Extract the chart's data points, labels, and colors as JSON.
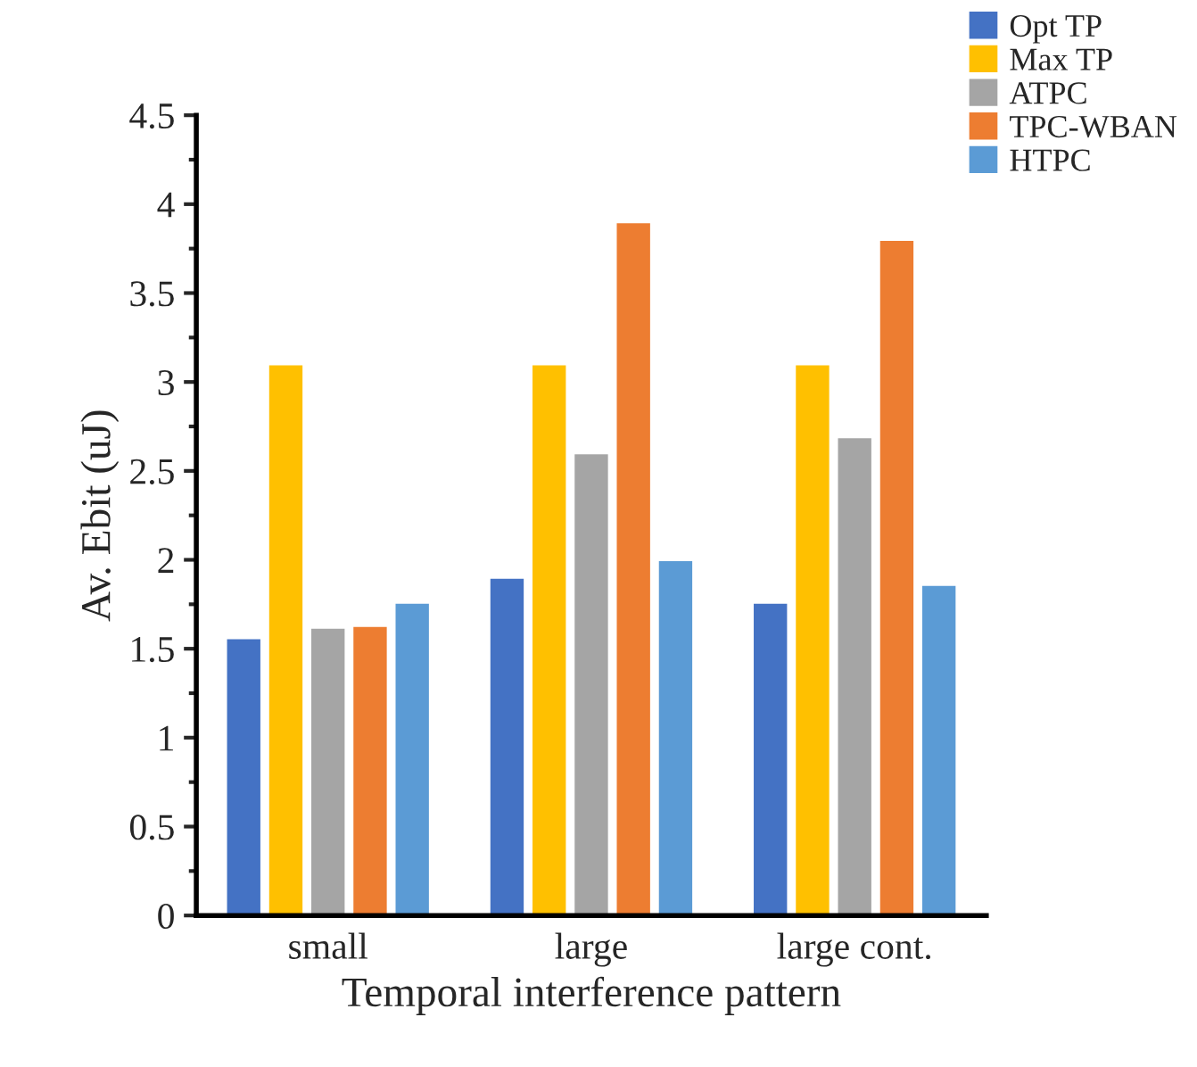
{
  "chart_data": {
    "type": "bar",
    "xlabel": "Temporal interference pattern",
    "ylabel": "Av. Ebit (uJ)",
    "categories": [
      "small",
      "large",
      "large cont."
    ],
    "series": [
      {
        "name": "Opt TP",
        "color": "#4472c4",
        "values": [
          1.56,
          1.9,
          1.76
        ]
      },
      {
        "name": "Max TP",
        "color": "#ffc000",
        "values": [
          3.1,
          3.1,
          3.1
        ]
      },
      {
        "name": "ATPC",
        "color": "#a5a5a5",
        "values": [
          1.62,
          2.6,
          2.69
        ]
      },
      {
        "name": "TPC-WBAN",
        "color": "#ed7d31",
        "values": [
          1.63,
          3.9,
          3.8
        ]
      },
      {
        "name": "HTPC",
        "color": "#5b9bd5",
        "values": [
          1.76,
          2.0,
          1.86
        ]
      }
    ],
    "ylim": [
      0,
      4.5
    ],
    "yticks": [
      0,
      0.5,
      1,
      1.5,
      2,
      2.5,
      3,
      3.5,
      4,
      4.5
    ],
    "grid": false,
    "legend": "top right"
  }
}
